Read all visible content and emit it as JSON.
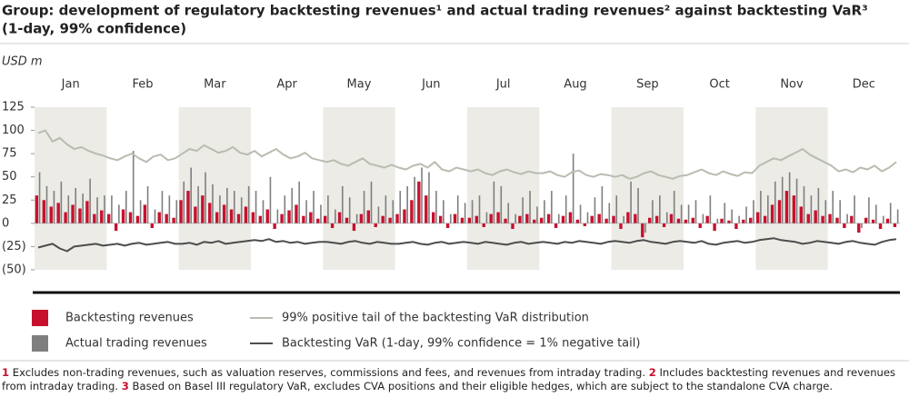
{
  "chart_data": {
    "type": "bar_line",
    "title_lines": [
      "Group: development of regulatory backtesting revenues¹ and actual trading revenues² against backtesting VaR³",
      "(1-day, 99% confidence)"
    ],
    "y_unit": "USD m",
    "categories": [
      "Jan",
      "Feb",
      "Mar",
      "Apr",
      "May",
      "Jun",
      "Jul",
      "Aug",
      "Sep",
      "Oct",
      "Nov",
      "Dec"
    ],
    "ylim": [
      -50,
      125
    ],
    "yticks": [
      125,
      100,
      75,
      50,
      25,
      0,
      {
        "value": -25,
        "label": "(25)"
      },
      {
        "value": -50,
        "label": "(50)"
      }
    ],
    "series": [
      {
        "name": "Backtesting revenues",
        "kind": "bar",
        "color": "#c8102e",
        "values": [
          [
            30,
            25,
            18,
            22,
            12,
            20,
            16,
            24,
            10,
            14
          ],
          [
            10,
            -8,
            15,
            12,
            8,
            20,
            -5,
            12,
            10,
            6
          ],
          [
            25,
            35,
            18,
            30,
            22,
            12,
            20,
            15,
            10,
            18
          ],
          [
            12,
            8,
            15,
            -6,
            10,
            14,
            20,
            8,
            12,
            5
          ],
          [
            8,
            -5,
            12,
            6,
            -8,
            10,
            14,
            -4,
            8,
            6
          ],
          [
            10,
            15,
            25,
            45,
            30,
            12,
            8,
            -5,
            10,
            6
          ],
          [
            6,
            8,
            -4,
            10,
            12,
            5,
            -6,
            8,
            10,
            4
          ],
          [
            6,
            10,
            -5,
            8,
            12,
            4,
            -3,
            8,
            10,
            5
          ],
          [
            8,
            -6,
            12,
            10,
            -15,
            6,
            8,
            -4,
            10,
            5
          ],
          [
            4,
            6,
            -5,
            8,
            -8,
            5,
            3,
            -6,
            4,
            6
          ],
          [
            12,
            8,
            20,
            25,
            35,
            30,
            18,
            10,
            14,
            8
          ],
          [
            10,
            6,
            -5,
            8,
            -10,
            6,
            4,
            -6,
            5,
            -4
          ]
        ]
      },
      {
        "name": "Actual trading revenues",
        "kind": "bar",
        "color": "#7f7f7f",
        "values": [
          [
            55,
            40,
            35,
            45,
            30,
            38,
            32,
            48,
            28,
            30
          ],
          [
            30,
            20,
            35,
            78,
            25,
            40,
            15,
            35,
            30,
            25
          ],
          [
            45,
            60,
            40,
            55,
            42,
            30,
            38,
            35,
            28,
            40
          ],
          [
            35,
            25,
            50,
            15,
            30,
            38,
            45,
            25,
            35,
            20
          ],
          [
            30,
            15,
            40,
            28,
            10,
            35,
            45,
            18,
            30,
            25
          ],
          [
            35,
            40,
            50,
            60,
            55,
            35,
            25,
            10,
            30,
            22
          ],
          [
            25,
            30,
            12,
            45,
            40,
            22,
            10,
            28,
            35,
            18
          ],
          [
            25,
            35,
            10,
            30,
            75,
            20,
            12,
            28,
            40,
            22
          ],
          [
            30,
            8,
            45,
            38,
            -10,
            25,
            30,
            12,
            35,
            20
          ],
          [
            20,
            25,
            10,
            30,
            5,
            22,
            15,
            8,
            18,
            25
          ],
          [
            35,
            30,
            45,
            50,
            55,
            48,
            40,
            30,
            38,
            25
          ],
          [
            35,
            25,
            10,
            30,
            -5,
            28,
            20,
            8,
            22,
            15
          ]
        ]
      },
      {
        "name": "99% positive tail of the backtesting VaR distribution",
        "kind": "line",
        "color": "#b8bdb0",
        "values": [
          [
            97,
            100,
            88,
            92,
            85,
            80,
            82,
            78,
            75,
            73
          ],
          [
            70,
            68,
            72,
            75,
            70,
            66,
            72,
            74,
            68,
            70
          ],
          [
            75,
            80,
            78,
            84,
            80,
            76,
            78,
            82,
            76,
            74
          ],
          [
            78,
            72,
            76,
            80,
            74,
            70,
            72,
            76,
            70,
            68
          ],
          [
            66,
            68,
            64,
            62,
            66,
            70,
            64,
            62,
            60,
            63
          ],
          [
            60,
            58,
            62,
            64,
            60,
            66,
            58,
            56,
            60,
            58
          ],
          [
            56,
            58,
            54,
            52,
            56,
            58,
            55,
            53,
            56,
            54
          ],
          [
            54,
            56,
            52,
            50,
            55,
            57,
            52,
            50,
            53,
            52
          ],
          [
            50,
            52,
            48,
            50,
            54,
            56,
            52,
            50,
            48,
            51
          ],
          [
            52,
            55,
            58,
            54,
            52,
            56,
            53,
            51,
            55,
            54
          ],
          [
            62,
            66,
            70,
            68,
            72,
            76,
            80,
            74,
            70,
            66
          ],
          [
            62,
            56,
            58,
            55,
            60,
            58,
            62,
            56,
            60,
            66
          ]
        ]
      },
      {
        "name": "Backtesting VaR (1-day, 99% confidence = 1% negative tail)",
        "kind": "line",
        "color": "#4d4d4d",
        "values": [
          [
            -26,
            -24,
            -22,
            -27,
            -30,
            -25,
            -24,
            -23,
            -22,
            -24
          ],
          [
            -23,
            -22,
            -24,
            -22,
            -21,
            -23,
            -22,
            -21,
            -20,
            -22
          ],
          [
            -22,
            -21,
            -23,
            -20,
            -21,
            -19,
            -22,
            -21,
            -20,
            -19
          ],
          [
            -18,
            -19,
            -17,
            -20,
            -19,
            -21,
            -20,
            -22,
            -21,
            -20
          ],
          [
            -20,
            -21,
            -22,
            -20,
            -19,
            -21,
            -22,
            -20,
            -21,
            -22
          ],
          [
            -22,
            -21,
            -20,
            -22,
            -23,
            -21,
            -20,
            -22,
            -21,
            -20
          ],
          [
            -21,
            -22,
            -20,
            -21,
            -22,
            -23,
            -21,
            -20,
            -22,
            -21
          ],
          [
            -20,
            -21,
            -22,
            -20,
            -21,
            -19,
            -20,
            -21,
            -22,
            -20
          ],
          [
            -19,
            -20,
            -21,
            -19,
            -18,
            -20,
            -21,
            -22,
            -20,
            -19
          ],
          [
            -20,
            -21,
            -19,
            -22,
            -23,
            -21,
            -20,
            -19,
            -21,
            -20
          ],
          [
            -18,
            -17,
            -16,
            -18,
            -19,
            -20,
            -22,
            -21,
            -19,
            -20
          ],
          [
            -21,
            -22,
            -20,
            -19,
            -21,
            -22,
            -23,
            -20,
            -18,
            -17
          ]
        ]
      }
    ],
    "footnotes": [
      {
        "number": "1",
        "text": "Excludes non-trading revenues, such as valuation reserves, commissions and fees, and revenues from intraday trading."
      },
      {
        "number": "2",
        "text": "Includes backtesting revenues and revenues from intraday trading."
      },
      {
        "number": "3",
        "text": "Based on Basel III regulatory VaR, excludes CVA positions and their eligible hedges, which are subject to the standalone CVA charge."
      }
    ]
  }
}
